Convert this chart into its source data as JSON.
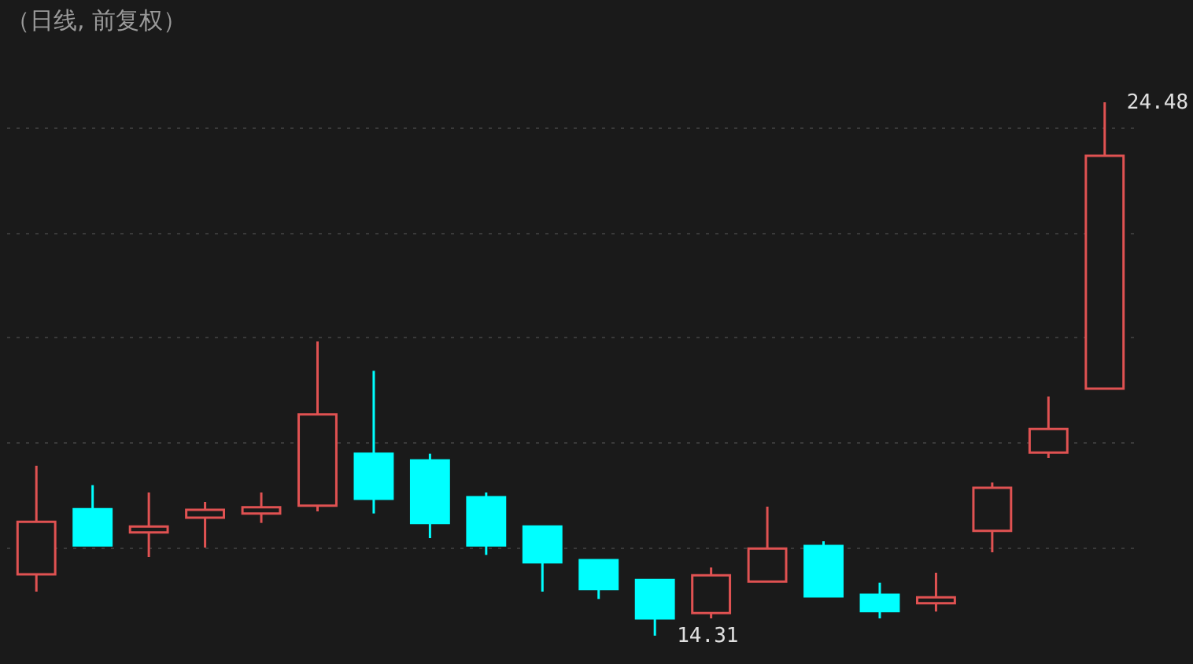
{
  "chart_data": {
    "type": "candlestick",
    "title": "（日线, 前复权）",
    "categories": [
      null,
      null,
      null,
      null,
      null,
      null,
      null,
      null,
      null,
      null,
      null,
      null,
      null,
      null,
      null,
      null,
      null,
      null,
      null,
      null
    ],
    "ohlc": [
      [
        15.48,
        17.55,
        15.15,
        16.48
      ],
      [
        16.72,
        17.18,
        16.03,
        16.03
      ],
      [
        16.28,
        17.04,
        15.81,
        16.39
      ],
      [
        16.56,
        16.86,
        15.99,
        16.71
      ],
      [
        16.64,
        17.04,
        16.46,
        16.76
      ],
      [
        16.79,
        19.92,
        16.68,
        18.53
      ],
      [
        17.78,
        19.36,
        16.64,
        16.92
      ],
      [
        17.65,
        17.78,
        16.17,
        16.46
      ],
      [
        16.95,
        17.04,
        15.85,
        16.03
      ],
      [
        16.39,
        16.39,
        15.15,
        15.71
      ],
      [
        15.75,
        15.75,
        15.01,
        15.2
      ],
      [
        15.37,
        15.37,
        14.31,
        14.64
      ],
      [
        14.74,
        15.61,
        14.64,
        15.46
      ],
      [
        15.34,
        16.77,
        15.34,
        15.97
      ],
      [
        16.02,
        16.11,
        15.06,
        15.06
      ],
      [
        15.09,
        15.32,
        14.64,
        14.78
      ],
      [
        14.93,
        15.51,
        14.77,
        15.04
      ],
      [
        16.31,
        17.23,
        15.9,
        17.13
      ],
      [
        17.8,
        18.87,
        17.7,
        18.25
      ],
      [
        19.02,
        24.48,
        19.02,
        23.46
      ]
    ],
    "colors": [
      "#e05252",
      "#00ffff",
      "#e05252",
      "#e05252",
      "#e05252",
      "#e05252",
      "#00ffff",
      "#00ffff",
      "#00ffff",
      "#00ffff",
      "#00ffff",
      "#00ffff",
      "#e05252",
      "#e05252",
      "#00ffff",
      "#00ffff",
      "#e05252",
      "#e05252",
      "#e05252",
      "#e05252"
    ],
    "yticks": [
      {
        "value": 16,
        "label": null
      },
      {
        "value": 18,
        "label": null
      },
      {
        "value": 20,
        "label": null
      },
      {
        "value": 22,
        "label": null
      },
      {
        "value": 24,
        "label": null
      }
    ],
    "grid": "y",
    "tick_labels": false,
    "annotations": [
      "14.31",
      "24.48"
    ]
  }
}
